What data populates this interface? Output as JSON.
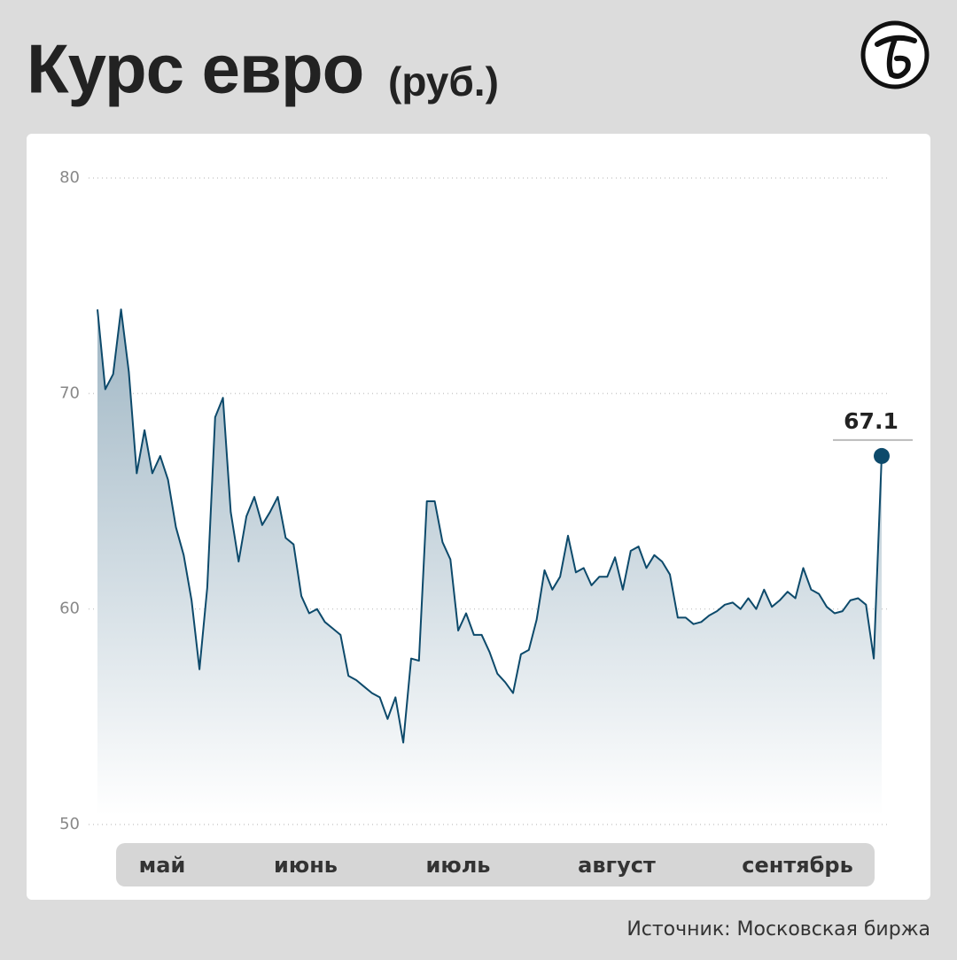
{
  "chart_data": {
    "type": "area",
    "title": "Курс евро",
    "subtitle": "(руб.)",
    "source": "Источник: Московская биржа",
    "month_labels": [
      "май",
      "июнь",
      "июль",
      "август",
      "сентябрь"
    ],
    "ylim": [
      50,
      80
    ],
    "yticks": [
      50,
      60,
      70,
      80
    ],
    "grid": true,
    "series": [
      {
        "name": "Курс евро",
        "color": "#0d4a6b",
        "values": [
          73.9,
          70.2,
          70.9,
          73.9,
          71.0,
          66.3,
          68.3,
          66.3,
          67.1,
          66.0,
          63.8,
          62.5,
          60.4,
          57.2,
          61.0,
          68.9,
          69.8,
          64.5,
          62.2,
          64.3,
          65.2,
          63.9,
          64.5,
          65.2,
          63.3,
          63.0,
          60.6,
          59.8,
          60.0,
          59.4,
          59.1,
          58.8,
          56.9,
          56.7,
          56.4,
          56.1,
          55.9,
          54.9,
          55.9,
          53.8,
          57.7,
          57.6,
          65.0,
          65.0,
          63.1,
          62.3,
          59.0,
          59.8,
          58.8,
          58.8,
          58.0,
          57.0,
          56.6,
          56.1,
          57.9,
          58.1,
          59.5,
          61.8,
          60.9,
          61.5,
          63.4,
          61.7,
          61.9,
          61.1,
          61.5,
          61.5,
          62.4,
          60.9,
          62.7,
          62.9,
          61.9,
          62.5,
          62.2,
          61.6,
          59.6,
          59.6,
          59.3,
          59.4,
          59.7,
          59.9,
          60.2,
          60.3,
          60.0,
          60.5,
          60.0,
          60.9,
          60.1,
          60.4,
          60.8,
          60.5,
          61.9,
          60.9,
          60.7,
          60.1,
          59.8,
          59.9,
          60.4,
          60.5,
          60.2,
          57.7,
          67.1
        ]
      }
    ]
  }
}
